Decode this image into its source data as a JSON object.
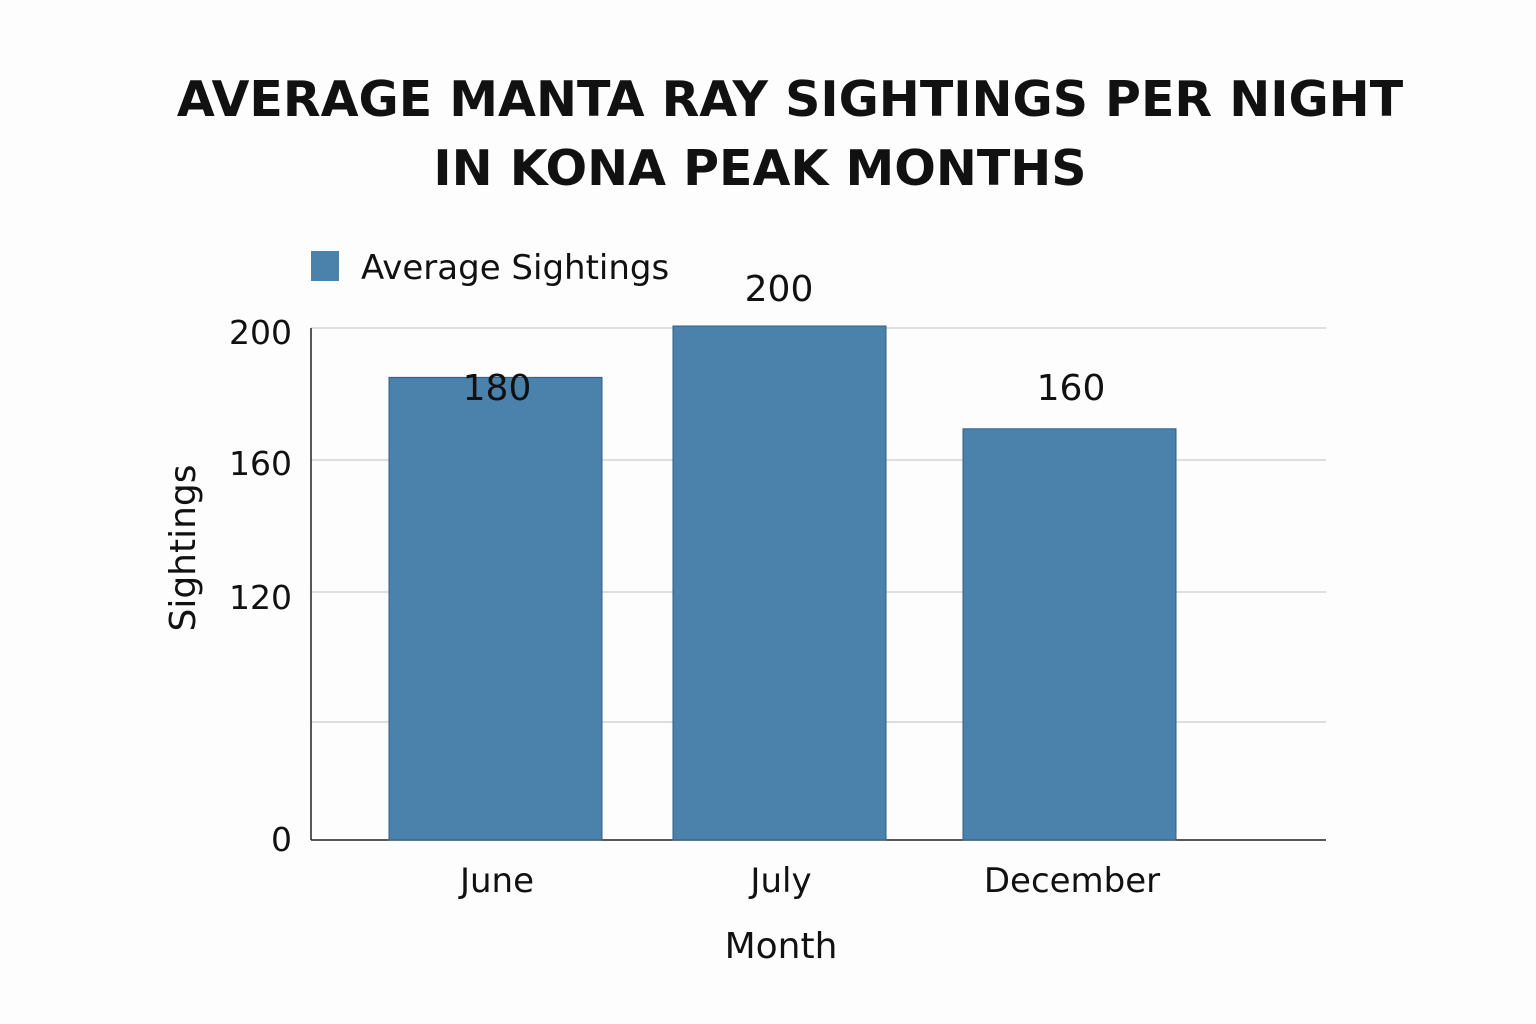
{
  "colors": {
    "bar": "#4a82ab",
    "background": "#fdfdfd"
  },
  "chart_data": {
    "type": "bar",
    "title_lines": [
      "AVERAGE MANTA RAY SIGHTINGS PER NIGHT",
      "IN KONA PEAK MONTHS"
    ],
    "categories": [
      "June",
      "July",
      "December"
    ],
    "series": [
      {
        "name": "Average Sightings",
        "values": [
          180,
          200,
          160
        ]
      }
    ],
    "data_labels": [
      "180",
      "200",
      "160"
    ],
    "xlabel": "Month",
    "ylabel": "Sightings",
    "y_tick_labels": [
      "200",
      "160",
      "120",
      "0"
    ],
    "grid": true,
    "legend": "top-left",
    "ylim": [
      0,
      200
    ]
  }
}
